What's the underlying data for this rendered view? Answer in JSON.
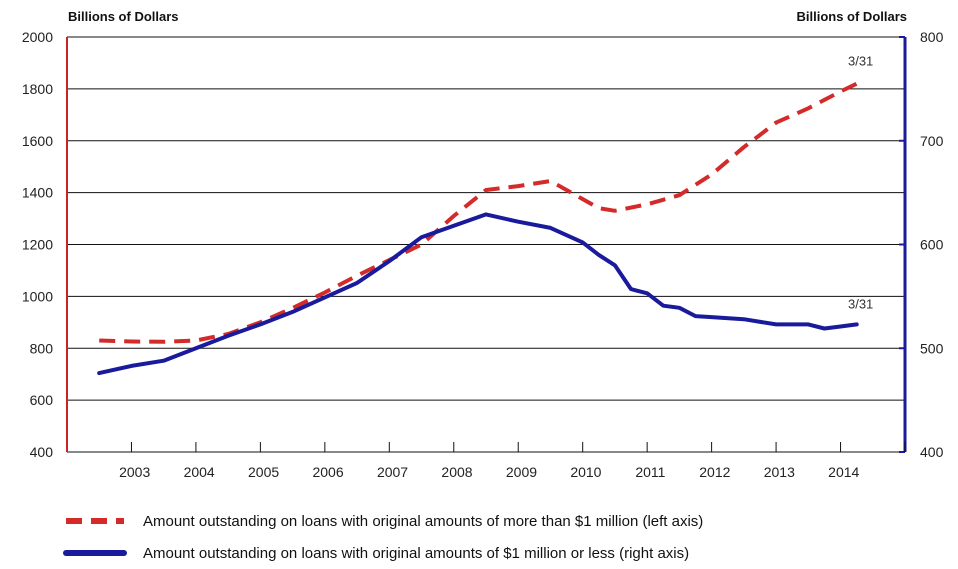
{
  "chart_data": {
    "type": "line",
    "left_axis": {
      "title": "Billions of Dollars",
      "ylim": [
        400,
        2000
      ],
      "ticks": [
        400,
        600,
        800,
        1000,
        1200,
        1400,
        1600,
        1800,
        2000
      ],
      "color": "#cc2222"
    },
    "right_axis": {
      "title": "Billions of Dollars",
      "ylim": [
        400,
        800
      ],
      "ticks": [
        400,
        500,
        600,
        700,
        800
      ],
      "color": "#1a1a9c"
    },
    "x_axis": {
      "ticks": [
        2003,
        2004,
        2005,
        2006,
        2007,
        2008,
        2009,
        2010,
        2011,
        2012,
        2013,
        2014
      ],
      "xlim": [
        2002.0,
        2015.0
      ]
    },
    "grid": true,
    "series": [
      {
        "name": "Amount outstanding on loans with original amounts of more than $1 million (left axis)",
        "axis": "left",
        "style": "dashed",
        "color": "#d42a2a",
        "end_label": "3/31",
        "points": [
          [
            2002.5,
            830
          ],
          [
            2003.0,
            826
          ],
          [
            2003.5,
            825
          ],
          [
            2004.0,
            830
          ],
          [
            2004.5,
            855
          ],
          [
            2005.0,
            900
          ],
          [
            2005.5,
            955
          ],
          [
            2006.0,
            1015
          ],
          [
            2006.5,
            1080
          ],
          [
            2007.0,
            1140
          ],
          [
            2007.5,
            1200
          ],
          [
            2008.0,
            1310
          ],
          [
            2008.5,
            1410
          ],
          [
            2009.0,
            1425
          ],
          [
            2009.5,
            1445
          ],
          [
            2010.0,
            1375
          ],
          [
            2010.25,
            1340
          ],
          [
            2010.5,
            1330
          ],
          [
            2011.0,
            1355
          ],
          [
            2011.5,
            1390
          ],
          [
            2012.0,
            1470
          ],
          [
            2012.5,
            1575
          ],
          [
            2013.0,
            1670
          ],
          [
            2013.5,
            1725
          ],
          [
            2014.0,
            1790
          ],
          [
            2014.25,
            1820
          ]
        ]
      },
      {
        "name": "Amount outstanding on loans with original amounts of $1 million or less (right axis)",
        "axis": "right",
        "style": "solid",
        "color": "#1a1a9c",
        "end_label": "3/31",
        "points": [
          [
            2002.5,
            476
          ],
          [
            2003.0,
            483
          ],
          [
            2003.5,
            488
          ],
          [
            2004.0,
            500
          ],
          [
            2004.5,
            512
          ],
          [
            2005.0,
            523
          ],
          [
            2005.5,
            535
          ],
          [
            2006.0,
            549
          ],
          [
            2006.5,
            563
          ],
          [
            2007.0,
            584
          ],
          [
            2007.5,
            607
          ],
          [
            2008.0,
            618
          ],
          [
            2008.5,
            629
          ],
          [
            2009.0,
            622
          ],
          [
            2009.5,
            616
          ],
          [
            2010.0,
            602
          ],
          [
            2010.25,
            590
          ],
          [
            2010.5,
            580
          ],
          [
            2010.75,
            557
          ],
          [
            2011.0,
            553
          ],
          [
            2011.25,
            541
          ],
          [
            2011.5,
            539
          ],
          [
            2011.75,
            531
          ],
          [
            2012.0,
            530
          ],
          [
            2012.5,
            528
          ],
          [
            2013.0,
            523
          ],
          [
            2013.5,
            523
          ],
          [
            2013.75,
            519
          ],
          [
            2014.0,
            521
          ],
          [
            2014.25,
            523
          ]
        ]
      }
    ]
  }
}
